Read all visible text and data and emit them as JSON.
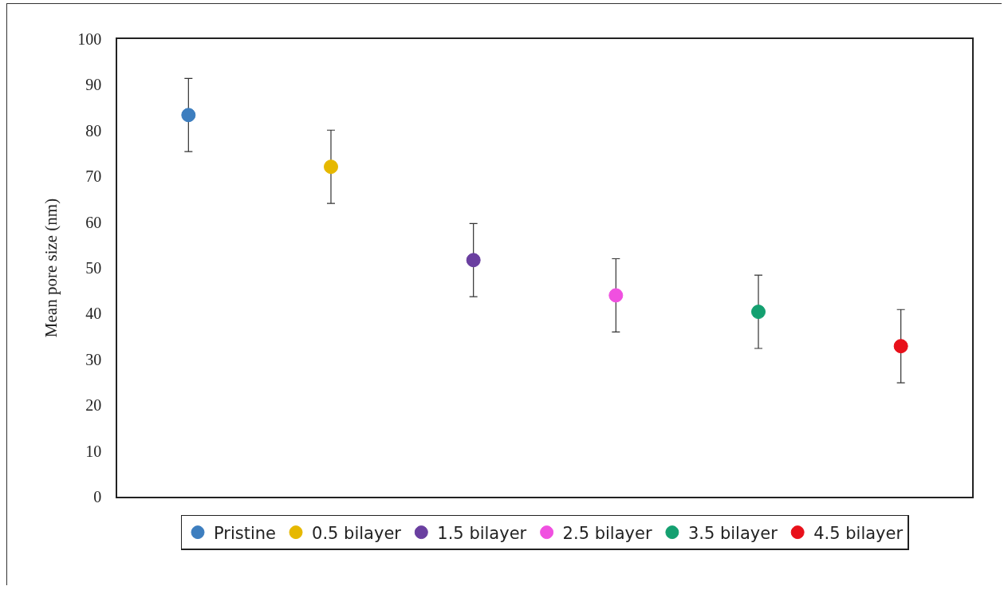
{
  "chart_data": {
    "type": "scatter",
    "ylabel": "Mean pore size (nm)",
    "categories": [
      null,
      null,
      null,
      null,
      null,
      null
    ],
    "ylim": [
      0,
      100
    ],
    "yticks": [
      0,
      10,
      20,
      30,
      40,
      50,
      60,
      70,
      80,
      90,
      100
    ],
    "grid": false,
    "legend": "bottom",
    "marker": "circle",
    "tick_labels": "y",
    "series": [
      {
        "name": "Pristine",
        "color": "#3d7ebf",
        "values": [
          83.4,
          null,
          null,
          null,
          null,
          null
        ],
        "errors": [
          8,
          null,
          null,
          null,
          null,
          null
        ]
      },
      {
        "name": "0.5 bilayer",
        "color": "#e6b800",
        "values": [
          null,
          72.1,
          null,
          null,
          null,
          null
        ],
        "errors": [
          null,
          8,
          null,
          null,
          null,
          null
        ]
      },
      {
        "name": "1.5 bilayer",
        "color": "#6a3fa0",
        "values": [
          null,
          null,
          51.7,
          null,
          null,
          null
        ],
        "errors": [
          null,
          null,
          8,
          null,
          null,
          null
        ]
      },
      {
        "name": "2.5 bilayer",
        "color": "#f050e0",
        "values": [
          null,
          null,
          null,
          44,
          null,
          null
        ],
        "errors": [
          null,
          null,
          null,
          8,
          null,
          null
        ]
      },
      {
        "name": "3.5 bilayer",
        "color": "#14a070",
        "values": [
          null,
          null,
          null,
          null,
          40.4,
          null
        ],
        "errors": [
          null,
          null,
          null,
          null,
          8,
          null
        ]
      },
      {
        "name": "4.5 bilayer",
        "color": "#e8101a",
        "values": [
          null,
          null,
          null,
          null,
          null,
          32.9
        ],
        "errors": [
          null,
          null,
          null,
          null,
          null,
          8
        ]
      }
    ]
  }
}
